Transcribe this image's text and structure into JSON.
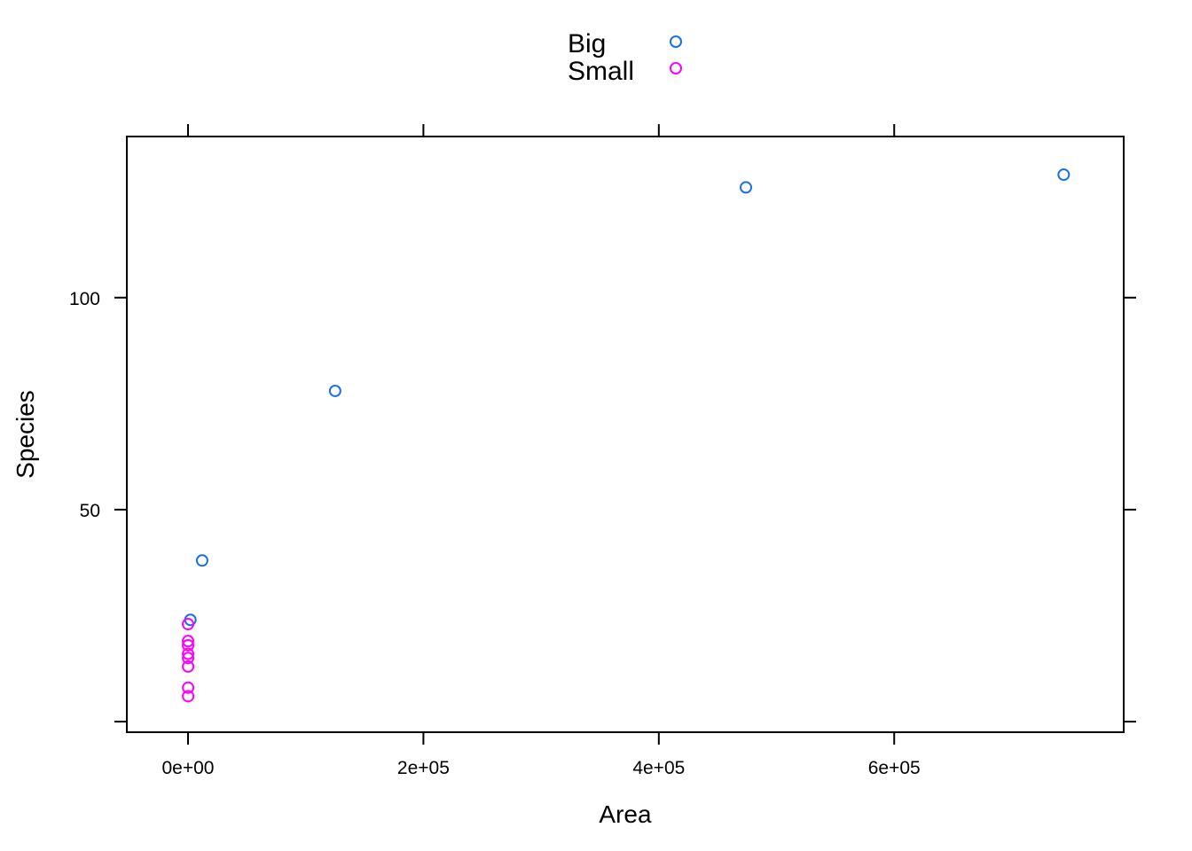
{
  "chart_data": {
    "type": "scatter",
    "xlabel": "Area",
    "ylabel": "Species",
    "xlim": [
      -52000,
      795000
    ],
    "ylim": [
      -2.5,
      138
    ],
    "x_ticks": [
      {
        "value": 0,
        "label": "0e+00"
      },
      {
        "value": 200000,
        "label": "2e+05"
      },
      {
        "value": 400000,
        "label": "4e+05"
      },
      {
        "value": 600000,
        "label": "6e+05"
      }
    ],
    "y_ticks": [
      {
        "value": 0,
        "label": ""
      },
      {
        "value": 50,
        "label": "50"
      },
      {
        "value": 100,
        "label": "100"
      }
    ],
    "grid": false,
    "legend_position": "top",
    "series": [
      {
        "name": "Big",
        "color": "#1a6fe6",
        "points": [
          {
            "x": 2000,
            "y": 24
          },
          {
            "x": 12000,
            "y": 38
          },
          {
            "x": 125000,
            "y": 78
          },
          {
            "x": 474000,
            "y": 126
          },
          {
            "x": 744000,
            "y": 129
          }
        ]
      },
      {
        "name": "Small",
        "color": "#ff00ff",
        "points": [
          {
            "x": 10,
            "y": 23
          },
          {
            "x": 20,
            "y": 19
          },
          {
            "x": 30,
            "y": 18
          },
          {
            "x": 40,
            "y": 16
          },
          {
            "x": 50,
            "y": 15
          },
          {
            "x": 60,
            "y": 13
          },
          {
            "x": 70,
            "y": 8
          },
          {
            "x": 80,
            "y": 6
          }
        ]
      }
    ]
  }
}
